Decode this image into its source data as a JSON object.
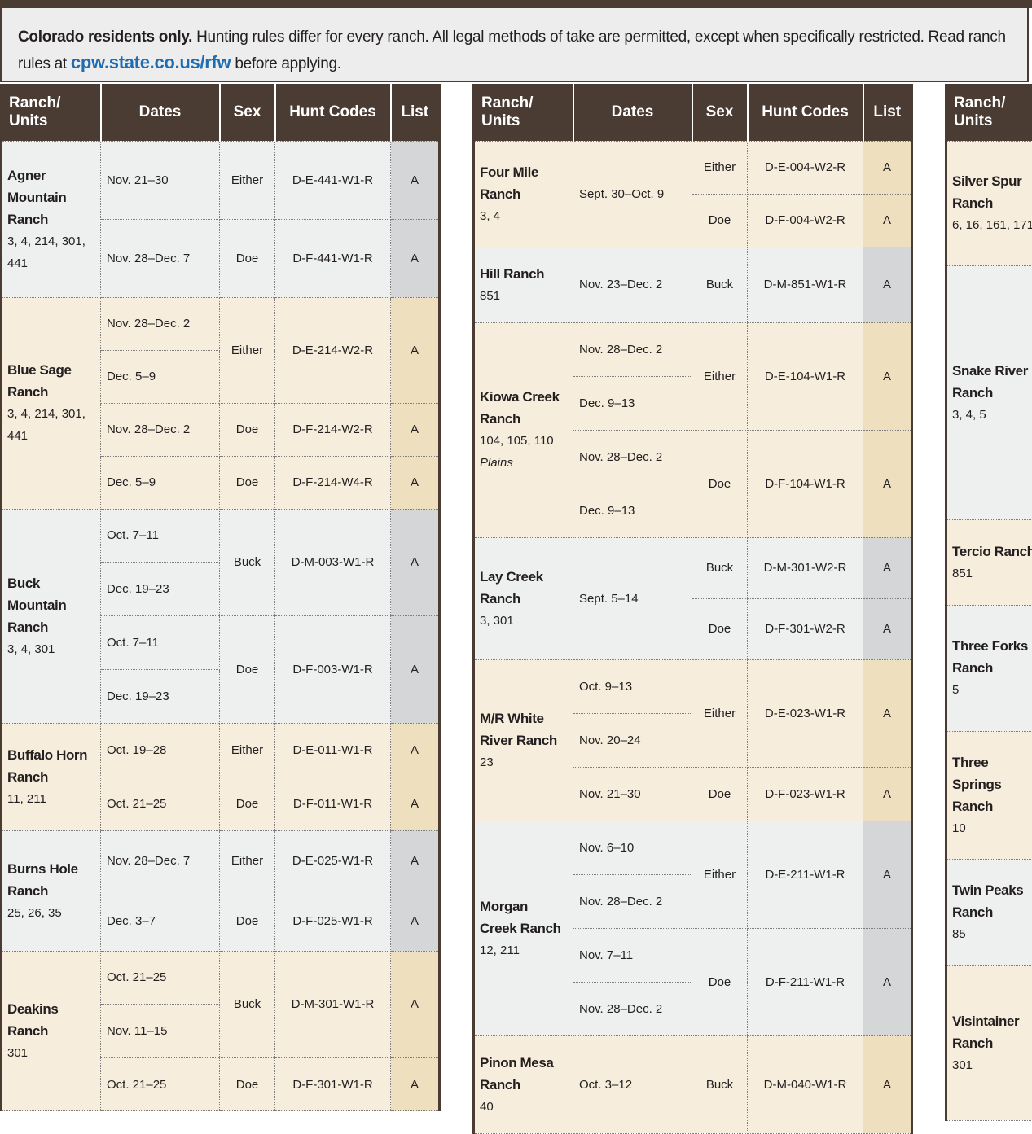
{
  "intro": {
    "bold": "Colorado residents only.",
    "text": "Hunting rules differ for every ranch. All legal methods of take are permitted, except when specifically restricted. Read ranch rules at",
    "link": "cpw.state.co.us/rfw",
    "after": "before applying."
  },
  "tables": [
    {
      "headers": [
        "Ranch/ Units",
        "Dates",
        "Sex",
        "Hunt Codes",
        "List"
      ],
      "ranches": [
        {
          "name": "Agner Mountain Ranch",
          "units": "3, 4, 214, 301, 441",
          "hunts": [
            {
              "dates": [
                "Nov. 21–30"
              ],
              "sex": "Either",
              "code": "D-E-441-W1-R",
              "list": "A"
            },
            {
              "dates": [
                "Nov. 28–Dec. 7"
              ],
              "sex": "Doe",
              "code": "D-F-441-W1-R",
              "list": "A"
            }
          ]
        },
        {
          "name": "Blue Sage Ranch",
          "units": "3, 4, 214, 301, 441",
          "hunts": [
            {
              "dates": [
                "Nov. 28–Dec. 2",
                "Dec. 5–9"
              ],
              "sex": "Either",
              "code": "D-E-214-W2-R",
              "list": "A"
            },
            {
              "dates": [
                "Nov. 28–Dec. 2"
              ],
              "sex": "Doe",
              "code": "D-F-214-W2-R",
              "list": "A"
            },
            {
              "dates": [
                "Dec. 5–9"
              ],
              "sex": "Doe",
              "code": "D-F-214-W4-R",
              "list": "A"
            }
          ]
        },
        {
          "name": "Buck Mountain Ranch",
          "units": "3, 4, 301",
          "hunts": [
            {
              "dates": [
                "Oct. 7–11",
                "Dec. 19–23"
              ],
              "sex": "Buck",
              "code": "D-M-003-W1-R",
              "list": "A"
            },
            {
              "dates": [
                "Oct. 7–11",
                "Dec. 19–23"
              ],
              "sex": "Doe",
              "code": "D-F-003-W1-R",
              "list": "A"
            }
          ]
        },
        {
          "name": "Buffalo Horn Ranch",
          "units": "11, 211",
          "hunts": [
            {
              "dates": [
                "Oct. 19–28"
              ],
              "sex": "Either",
              "code": "D-E-011-W1-R",
              "list": "A"
            },
            {
              "dates": [
                "Oct. 21–25"
              ],
              "sex": "Doe",
              "code": "D-F-011-W1-R",
              "list": "A"
            }
          ]
        },
        {
          "name": "Burns Hole Ranch",
          "units": "25, 26, 35",
          "hunts": [
            {
              "dates": [
                "Nov. 28–Dec. 7"
              ],
              "sex": "Either",
              "code": "D-E-025-W1-R",
              "list": "A"
            },
            {
              "dates": [
                "Dec. 3–7"
              ],
              "sex": "Doe",
              "code": "D-F-025-W1-R",
              "list": "A"
            }
          ]
        },
        {
          "name": "Deakins Ranch",
          "units": "301",
          "hunts": [
            {
              "dates": [
                "Oct. 21–25",
                "Nov. 11–15"
              ],
              "sex": "Buck",
              "code": "D-M-301-W1-R",
              "list": "A"
            },
            {
              "dates": [
                "Oct. 21–25"
              ],
              "sex": "Doe",
              "code": "D-F-301-W1-R",
              "list": "A"
            }
          ]
        }
      ]
    },
    {
      "headers": [
        "Ranch/ Units",
        "Dates",
        "Sex",
        "Hunt Codes",
        "List"
      ],
      "ranches": [
        {
          "name": "Four Mile Ranch",
          "units": "3, 4",
          "dates": "Sept. 30–Oct. 9",
          "hunts": [
            {
              "sex": "Either",
              "code": "D-E-004-W2-R",
              "list": "A"
            },
            {
              "sex": "Doe",
              "code": "D-F-004-W2-R",
              "list": "A"
            }
          ]
        },
        {
          "name": "Hill Ranch",
          "units": "851",
          "hunts": [
            {
              "dates": [
                "Nov. 23–Dec. 2"
              ],
              "sex": "Buck",
              "code": "D-M-851-W1-R",
              "list": "A"
            }
          ]
        },
        {
          "name": "Kiowa Creek Ranch",
          "units": "104, 105, 110",
          "note": "Plains",
          "hunts": [
            {
              "dates": [
                "Nov. 28–Dec. 2",
                "Dec. 9–13"
              ],
              "sex": "Either",
              "code": "D-E-104-W1-R",
              "list": "A"
            },
            {
              "dates": [
                "Nov. 28–Dec. 2",
                "Dec. 9–13"
              ],
              "sex": "Doe",
              "code": "D-F-104-W1-R",
              "list": "A"
            }
          ]
        },
        {
          "name": "Lay Creek Ranch",
          "units": "3, 301",
          "dates": "Sept. 5–14",
          "hunts": [
            {
              "sex": "Buck",
              "code": "D-M-301-W2-R",
              "list": "A"
            },
            {
              "sex": "Doe",
              "code": "D-F-301-W2-R",
              "list": "A"
            }
          ]
        },
        {
          "name": "M/R White River Ranch",
          "units": "23",
          "hunts": [
            {
              "dates": [
                "Oct. 9–13",
                "Nov. 20–24"
              ],
              "sex": "Either",
              "code": "D-E-023-W1-R",
              "list": "A"
            },
            {
              "dates": [
                "Nov. 21–30"
              ],
              "sex": "Doe",
              "code": "D-F-023-W1-R",
              "list": "A"
            }
          ]
        },
        {
          "name": "Morgan Creek Ranch",
          "units": "12, 211",
          "hunts": [
            {
              "dates": [
                "Nov. 6–10",
                "Nov. 28–Dec. 2"
              ],
              "sex": "Either",
              "code": "D-E-211-W1-R",
              "list": "A"
            },
            {
              "dates": [
                "Nov. 7–11",
                "Nov. 28–Dec. 2"
              ],
              "sex": "Doe",
              "code": "D-F-211-W1-R",
              "list": "A"
            }
          ]
        },
        {
          "name": "Pinon Mesa Ranch",
          "units": "40",
          "hunts": [
            {
              "dates": [
                "Oct. 3–12"
              ],
              "sex": "Buck",
              "code": "D-M-040-W1-R",
              "list": "A"
            }
          ]
        }
      ]
    },
    {
      "headers": [
        "Ranch/ Units"
      ],
      "ranches": [
        {
          "name": "Silver Spur Ranch",
          "units": "6, 16, 161, 171"
        },
        {
          "name": "Snake River Ranch",
          "units": "3, 4, 5"
        },
        {
          "name": "Tercio Ranch",
          "units": "851"
        },
        {
          "name": "Three Forks Ranch",
          "units": "5"
        },
        {
          "name": "Three Springs Ranch",
          "units": "10"
        },
        {
          "name": "Twin Peaks Ranch",
          "units": "85"
        },
        {
          "name": "Visintainer Ranch",
          "units": "301"
        }
      ]
    }
  ]
}
